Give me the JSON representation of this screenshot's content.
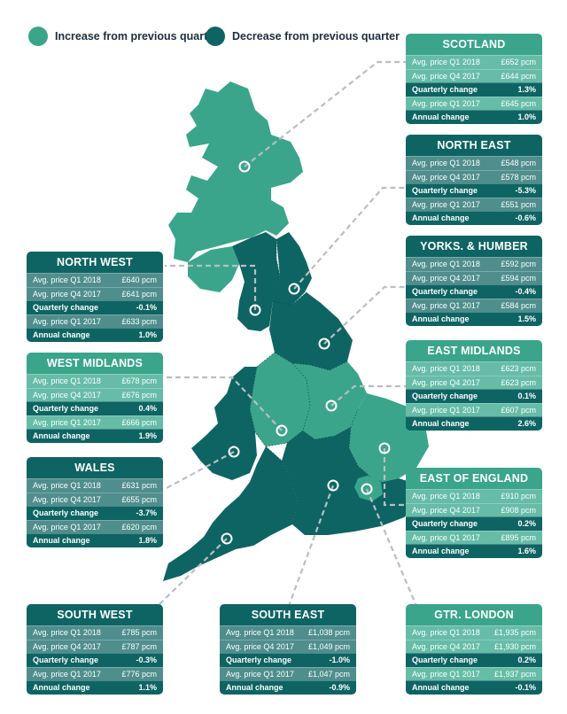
{
  "colors": {
    "increase": "#3aa58b",
    "decrease": "#0e6463"
  },
  "legend": {
    "increase_label": "Increase from previous quarter",
    "decrease_label": "Decrease from previous quarter"
  },
  "row_labels": {
    "q1_2018": "Avg. price Q1 2018",
    "q4_2017": "Avg. price Q4 2017",
    "quarterly": "Quarterly change",
    "q1_2017": "Avg. price Q1 2017",
    "annual": "Annual change"
  },
  "regions": {
    "scotland": {
      "name": "SCOTLAND",
      "trend": "increase",
      "q1_2018": "£652 pcm",
      "q4_2017": "£644 pcm",
      "quarterly": "1.3%",
      "q1_2017": "£645 pcm",
      "annual": "1.0%"
    },
    "north_east": {
      "name": "NORTH EAST",
      "trend": "decrease",
      "q1_2018": "£548 pcm",
      "q4_2017": "£578 pcm",
      "quarterly": "-5.3%",
      "q1_2017": "£551 pcm",
      "annual": "-0.6%"
    },
    "yorks": {
      "name": "YORKS. & HUMBER",
      "trend": "decrease",
      "q1_2018": "£592 pcm",
      "q4_2017": "£594 pcm",
      "quarterly": "-0.4%",
      "q1_2017": "£584 pcm",
      "annual": "1.5%"
    },
    "east_midlands": {
      "name": "EAST MIDLANDS",
      "trend": "increase",
      "q1_2018": "£623 pcm",
      "q4_2017": "£623 pcm",
      "quarterly": "0.1%",
      "q1_2017": "£607 pcm",
      "annual": "2.6%"
    },
    "east_england": {
      "name": "EAST OF ENGLAND",
      "trend": "increase",
      "q1_2018": "£910 pcm",
      "q4_2017": "£908 pcm",
      "quarterly": "0.2%",
      "q1_2017": "£895 pcm",
      "annual": "1.6%"
    },
    "london": {
      "name": "GTR. LONDON",
      "trend": "increase",
      "q1_2018": "£1,935 pcm",
      "q4_2017": "£1,930 pcm",
      "quarterly": "0.2%",
      "q1_2017": "£1,937 pcm",
      "annual": "-0.1%"
    },
    "south_east": {
      "name": "SOUTH EAST",
      "trend": "decrease",
      "q1_2018": "£1,038 pcm",
      "q4_2017": "£1,049 pcm",
      "quarterly": "-1.0%",
      "q1_2017": "£1,047 pcm",
      "annual": "-0.9%"
    },
    "south_west": {
      "name": "SOUTH WEST",
      "trend": "decrease",
      "q1_2018": "£785 pcm",
      "q4_2017": "£787 pcm",
      "quarterly": "-0.3%",
      "q1_2017": "£776 pcm",
      "annual": "1.1%"
    },
    "wales": {
      "name": "WALES",
      "trend": "decrease",
      "q1_2018": "£631 pcm",
      "q4_2017": "£655 pcm",
      "quarterly": "-3.7%",
      "q1_2017": "£620 pcm",
      "annual": "1.8%"
    },
    "west_midlands": {
      "name": "WEST MIDLANDS",
      "trend": "increase",
      "q1_2018": "£678 pcm",
      "q4_2017": "£676 pcm",
      "quarterly": "0.4%",
      "q1_2017": "£666 pcm",
      "annual": "1.9%"
    },
    "north_west": {
      "name": "NORTH WEST",
      "trend": "decrease",
      "q1_2018": "£640 pcm",
      "q4_2017": "£641 pcm",
      "quarterly": "-0.1%",
      "q1_2017": "£633 pcm",
      "annual": "1.0%"
    }
  }
}
